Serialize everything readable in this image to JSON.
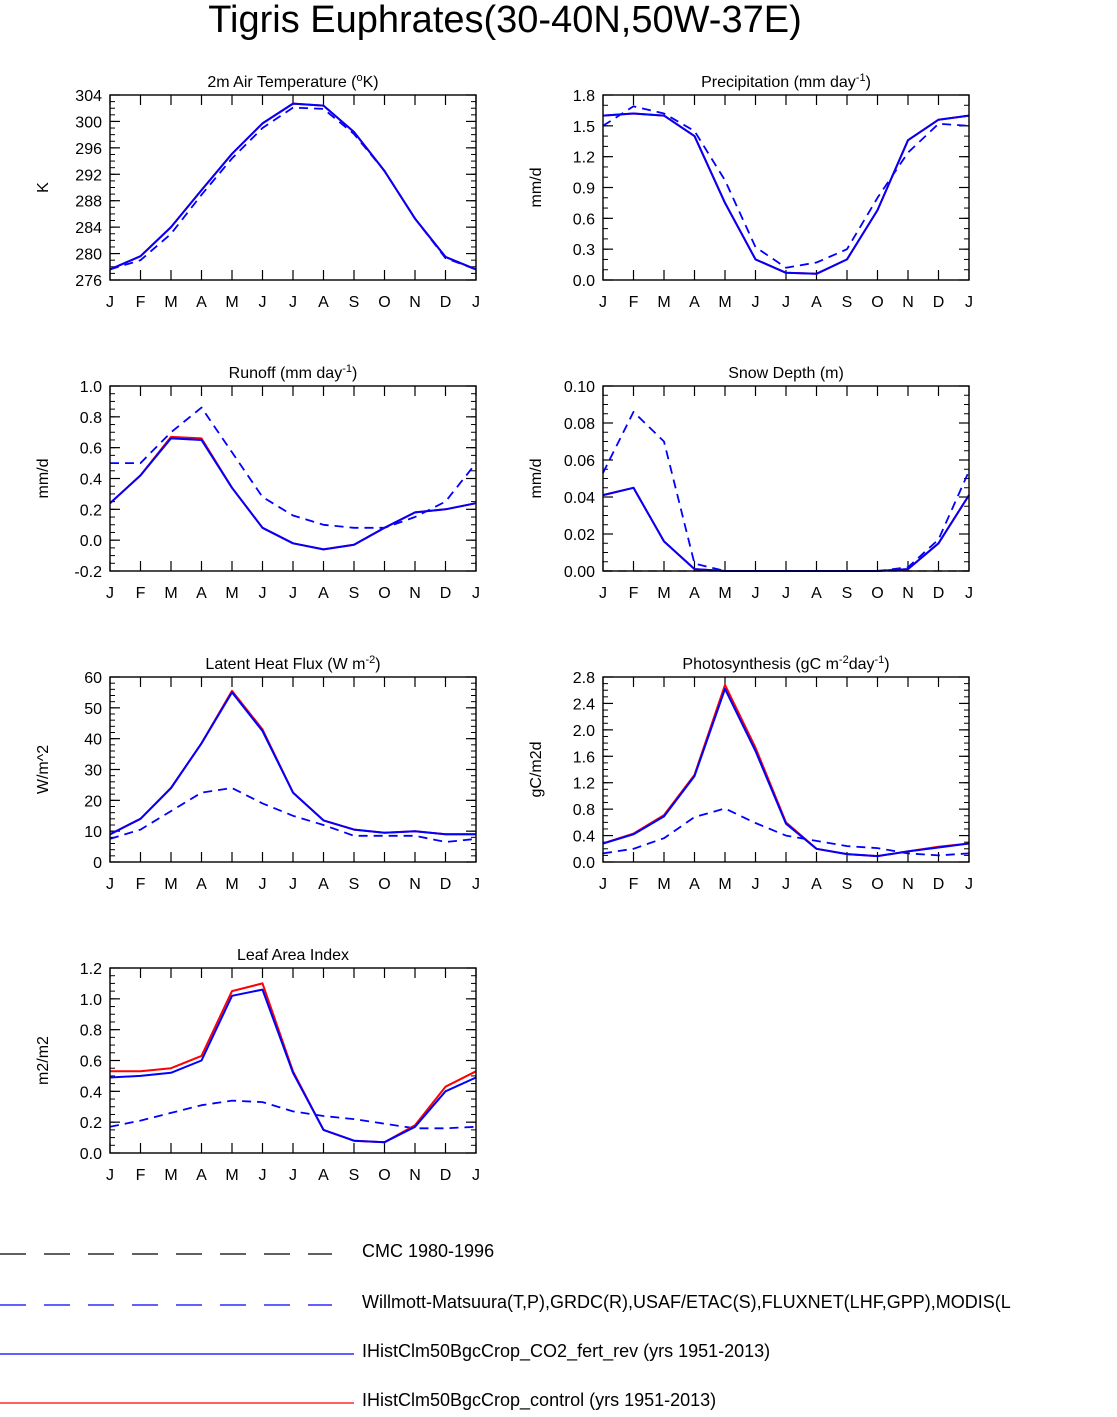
{
  "title": "Tigris Euphrates(30-40N,50W-37E)",
  "months": [
    "J",
    "F",
    "M",
    "A",
    "M",
    "J",
    "J",
    "A",
    "S",
    "O",
    "N",
    "D",
    "J"
  ],
  "legend": [
    {
      "label": "CMC 1980-1996",
      "color": "#000000",
      "dash": true
    },
    {
      "label": "Willmott-Matsuura(T,P),GRDC(R),USAF/ETAC(S),FLUXNET(LHF,GPP),MODIS(L",
      "color": "#0000ff",
      "dash": true
    },
    {
      "label": "IHistClm50BgcCrop_CO2_fert_rev (yrs 1951-2013)",
      "color": "#0000ff",
      "dash": false
    },
    {
      "label": "IHistClm50BgcCrop_control (yrs 1951-2013)",
      "color": "#ff0000",
      "dash": false
    }
  ],
  "chart_data": [
    {
      "type": "line",
      "title": "2m Air Temperature (",
      "title_sup": "o",
      "title_tail": "K)",
      "ylabel": "K",
      "ylim": [
        276,
        304
      ],
      "yticks": [
        "276",
        "280",
        "284",
        "288",
        "292",
        "296",
        "300",
        "304"
      ],
      "yminor": 1,
      "series": [
        {
          "values": [
            277.6,
            279.0,
            283.0,
            288.9,
            294.4,
            299.0,
            302.1,
            301.9,
            298.1,
            292.5,
            285.3,
            279.3,
            277.6
          ]
        },
        {
          "values": [
            277.6,
            279.6,
            284.0,
            289.6,
            295.1,
            299.7,
            302.7,
            302.4,
            298.4,
            292.5,
            285.3,
            279.5,
            277.6
          ]
        },
        {
          "values": [
            277.6,
            279.6,
            284.0,
            289.6,
            295.1,
            299.7,
            302.7,
            302.4,
            298.4,
            292.5,
            285.3,
            279.5,
            277.6
          ]
        }
      ]
    },
    {
      "type": "line",
      "title": "Precipitation (mm day",
      "title_sup": "-1",
      "title_tail": ")",
      "ylabel": "mm/d",
      "ylim": [
        0,
        1.8
      ],
      "yticks": [
        "0.0",
        "0.3",
        "0.6",
        "0.9",
        "1.2",
        "1.5",
        "1.8"
      ],
      "yminor": 0.1,
      "series": [
        {
          "values": [
            1.5,
            1.69,
            1.62,
            1.45,
            0.97,
            0.32,
            0.12,
            0.17,
            0.3,
            0.8,
            1.24,
            1.52,
            1.5
          ]
        },
        {
          "values": [
            1.6,
            1.62,
            1.6,
            1.4,
            0.75,
            0.2,
            0.07,
            0.06,
            0.2,
            0.68,
            1.36,
            1.56,
            1.6
          ]
        },
        {
          "values": [
            1.6,
            1.62,
            1.6,
            1.4,
            0.75,
            0.2,
            0.07,
            0.06,
            0.2,
            0.68,
            1.36,
            1.56,
            1.6
          ]
        }
      ]
    },
    {
      "type": "line",
      "title": "Runoff (mm day",
      "title_sup": "-1",
      "title_tail": ")",
      "ylabel": "mm/d",
      "ylim": [
        -0.2,
        1.0
      ],
      "yticks": [
        "-0.2",
        "0.0",
        "0.2",
        "0.4",
        "0.6",
        "0.8",
        "1.0"
      ],
      "yminor": 0.05,
      "series": [
        {
          "values": [
            0.5,
            0.5,
            0.7,
            0.86,
            0.57,
            0.28,
            0.16,
            0.1,
            0.08,
            0.08,
            0.15,
            0.25,
            0.5
          ]
        },
        {
          "values": [
            0.24,
            0.42,
            0.66,
            0.65,
            0.34,
            0.08,
            -0.02,
            -0.06,
            -0.03,
            0.08,
            0.18,
            0.2,
            0.24
          ]
        },
        {
          "values": [
            0.24,
            0.42,
            0.67,
            0.66,
            0.34,
            0.08,
            -0.02,
            -0.06,
            -0.03,
            0.08,
            0.18,
            0.2,
            0.24
          ]
        }
      ]
    },
    {
      "type": "line",
      "title": "Snow Depth (m)",
      "title_sup": "",
      "title_tail": "",
      "ylabel": "mm/d",
      "ylim": [
        0,
        0.1
      ],
      "yticks": [
        "0.00",
        "0.02",
        "0.04",
        "0.06",
        "0.08",
        "0.10"
      ],
      "yminor": 0.005,
      "series": [
        {
          "values": [
            0.053,
            0.086,
            0.07,
            0.004,
            0.0,
            0.0,
            0.0,
            0.0,
            0.0,
            0.0,
            0.002,
            0.017,
            0.054
          ]
        },
        {
          "values": [
            0.041,
            0.045,
            0.016,
            0.001,
            0.0,
            0.0,
            0.0,
            0.0,
            0.0,
            0.0,
            0.001,
            0.015,
            0.041
          ]
        },
        {
          "values": [
            0.041,
            0.045,
            0.016,
            0.001,
            0.0,
            0.0,
            0.0,
            0.0,
            0.0,
            0.0,
            0.001,
            0.015,
            0.041
          ]
        }
      ],
      "cmc": {
        "values": [
          0,
          0,
          0,
          0,
          0,
          0,
          0,
          0,
          0,
          0,
          0,
          0,
          0
        ]
      }
    },
    {
      "type": "line",
      "title": "Latent Heat Flux (W m",
      "title_sup": "-2",
      "title_tail": ")",
      "ylabel": "W/m^2",
      "ylim": [
        0,
        60
      ],
      "yticks": [
        "0",
        "10",
        "20",
        "30",
        "40",
        "50",
        "60"
      ],
      "yminor": 2,
      "series": [
        {
          "values": [
            7.5,
            10.5,
            16.5,
            22.5,
            24.0,
            19.0,
            15.0,
            12.0,
            8.5,
            8.5,
            8.5,
            6.5,
            7.5
          ]
        },
        {
          "values": [
            9.0,
            14.0,
            24.0,
            38.5,
            55.0,
            42.5,
            22.5,
            13.5,
            10.5,
            9.5,
            10.0,
            9.0,
            9.0
          ]
        },
        {
          "values": [
            9.0,
            14.0,
            24.0,
            38.5,
            55.5,
            43.0,
            22.5,
            13.5,
            10.5,
            9.5,
            10.0,
            9.0,
            9.0
          ]
        }
      ]
    },
    {
      "type": "line",
      "title": "Photosynthesis (gC m",
      "title_sup": "-2",
      "title_tail": "day",
      "title_sup2": "-1",
      "title_tail2": ")",
      "ylabel": "gC/m2d",
      "ylim": [
        0,
        2.8
      ],
      "yticks": [
        "0.0",
        "0.4",
        "0.8",
        "1.2",
        "1.6",
        "2.0",
        "2.4",
        "2.8"
      ],
      "yminor": 0.1,
      "series": [
        {
          "values": [
            0.13,
            0.2,
            0.36,
            0.68,
            0.81,
            0.59,
            0.4,
            0.32,
            0.24,
            0.21,
            0.13,
            0.1,
            0.13
          ]
        },
        {
          "values": [
            0.28,
            0.42,
            0.69,
            1.3,
            2.62,
            1.68,
            0.58,
            0.2,
            0.12,
            0.09,
            0.16,
            0.22,
            0.28
          ]
        },
        {
          "values": [
            0.28,
            0.43,
            0.71,
            1.32,
            2.68,
            1.73,
            0.6,
            0.2,
            0.12,
            0.09,
            0.16,
            0.23,
            0.28
          ]
        }
      ]
    },
    {
      "type": "line",
      "title": "Leaf Area Index",
      "title_sup": "",
      "title_tail": "",
      "ylabel": "m2/m2",
      "ylim": [
        0,
        1.2
      ],
      "yticks": [
        "0.0",
        "0.2",
        "0.4",
        "0.6",
        "0.8",
        "1.0",
        "1.2"
      ],
      "yminor": 0.05,
      "series": [
        {
          "values": [
            0.17,
            0.21,
            0.26,
            0.31,
            0.34,
            0.33,
            0.27,
            0.24,
            0.22,
            0.19,
            0.16,
            0.16,
            0.17
          ]
        },
        {
          "values": [
            0.49,
            0.5,
            0.52,
            0.6,
            1.02,
            1.06,
            0.52,
            0.15,
            0.08,
            0.07,
            0.17,
            0.4,
            0.49
          ]
        },
        {
          "values": [
            0.53,
            0.53,
            0.55,
            0.63,
            1.05,
            1.1,
            0.53,
            0.15,
            0.08,
            0.07,
            0.18,
            0.43,
            0.53
          ]
        }
      ]
    }
  ]
}
